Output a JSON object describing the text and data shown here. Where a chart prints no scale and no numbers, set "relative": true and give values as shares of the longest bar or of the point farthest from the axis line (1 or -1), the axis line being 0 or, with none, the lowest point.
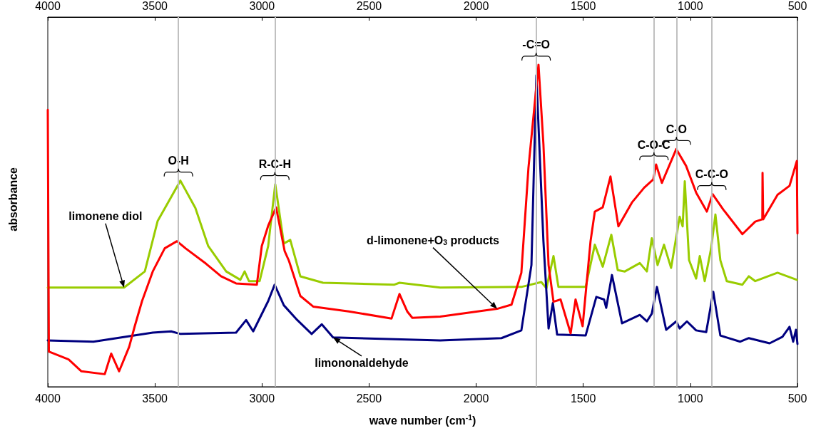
{
  "chart_data": {
    "type": "line",
    "relative": true,
    "xlabel": "wave number (cm$^{-1}$)",
    "ylabel": "absorbance",
    "xlim": [
      4000,
      500
    ],
    "xticks": [
      4000,
      3500,
      3000,
      2500,
      2000,
      1500,
      1000,
      500
    ],
    "x2lim": [
      4000,
      500
    ],
    "x2ticks": [
      4000,
      3500,
      3000,
      2500,
      2000,
      1500,
      1000,
      500
    ],
    "grid": false,
    "marker": "none",
    "line_style": "solid",
    "series": [
      {
        "name": "limonene diol",
        "color": "#99cc00",
        "x": [
          4000,
          3644,
          3547,
          3487,
          3381,
          3311,
          3251,
          3167,
          3101,
          3081,
          3061,
          3011,
          2971,
          2938,
          2898,
          2868,
          2821,
          2715,
          2382,
          2358,
          2168,
          1789,
          1696,
          1672,
          1639,
          1616,
          1489,
          1446,
          1409,
          1369,
          1339,
          1306,
          1236,
          1203,
          1180,
          1153,
          1123,
          1090,
          1050,
          1036,
          1026,
          1006,
          973,
          956,
          933,
          903,
          883,
          860,
          830,
          757,
          727,
          697,
          593,
          503
        ],
        "values": [
          0.308,
          0.308,
          0.358,
          0.515,
          0.64,
          0.555,
          0.437,
          0.358,
          0.332,
          0.358,
          0.328,
          0.328,
          0.437,
          0.629,
          0.445,
          0.456,
          0.343,
          0.323,
          0.317,
          0.323,
          0.308,
          0.31,
          0.325,
          0.306,
          0.406,
          0.31,
          0.31,
          0.441,
          0.373,
          0.472,
          0.362,
          0.358,
          0.384,
          0.358,
          0.461,
          0.378,
          0.441,
          0.369,
          0.528,
          0.498,
          0.638,
          0.393,
          0.336,
          0.406,
          0.328,
          0.43,
          0.535,
          0.393,
          0.328,
          0.317,
          0.343,
          0.328,
          0.354,
          0.332
        ]
      },
      {
        "name": "limononaldehyde",
        "color": "#000080",
        "x": [
          4000,
          3787,
          3510,
          3424,
          3381,
          3121,
          3074,
          3041,
          2971,
          2941,
          2898,
          2835,
          2768,
          2721,
          2668,
          2168,
          1882,
          1789,
          1742,
          1719,
          1686,
          1662,
          1642,
          1622,
          1489,
          1439,
          1403,
          1393,
          1366,
          1319,
          1236,
          1203,
          1180,
          1156,
          1113,
          1066,
          1050,
          1016,
          973,
          926,
          893,
          860,
          767,
          727,
          630,
          570,
          537,
          520,
          507,
          500
        ],
        "values": [
          0.144,
          0.14,
          0.168,
          0.172,
          0.164,
          0.168,
          0.207,
          0.172,
          0.266,
          0.317,
          0.253,
          0.207,
          0.164,
          0.194,
          0.153,
          0.144,
          0.151,
          0.175,
          0.378,
          0.967,
          0.452,
          0.181,
          0.26,
          0.162,
          0.159,
          0.279,
          0.271,
          0.245,
          0.347,
          0.197,
          0.223,
          0.203,
          0.227,
          0.31,
          0.177,
          0.203,
          0.181,
          0.203,
          0.175,
          0.17,
          0.295,
          0.159,
          0.14,
          0.151,
          0.135,
          0.155,
          0.186,
          0.14,
          0.177,
          0.133
        ]
      },
      {
        "name": "d-limonene+O$_{3}$ products",
        "color": "#ff0000",
        "x": [
          4000,
          3995,
          3903,
          3843,
          3734,
          3704,
          3667,
          3620,
          3594,
          3560,
          3510,
          3454,
          3397,
          3357,
          3261,
          3191,
          3121,
          3024,
          3001,
          2971,
          2934,
          2894,
          2874,
          2821,
          2761,
          2595,
          2395,
          2358,
          2322,
          2298,
          2168,
          1902,
          1835,
          1789,
          1756,
          1709,
          1686,
          1662,
          1639,
          1606,
          1559,
          1536,
          1503,
          1466,
          1446,
          1409,
          1373,
          1336,
          1273,
          1216,
          1173,
          1160,
          1133,
          1066,
          1020,
          973,
          923,
          896,
          846,
          757,
          697,
          664,
          663,
          660,
          593,
          537,
          503,
          500
        ],
        "values": [
          0.86,
          0.109,
          0.085,
          0.048,
          0.039,
          0.103,
          0.048,
          0.124,
          0.188,
          0.266,
          0.358,
          0.43,
          0.452,
          0.43,
          0.382,
          0.343,
          0.321,
          0.317,
          0.437,
          0.5,
          0.557,
          0.421,
          0.391,
          0.282,
          0.249,
          0.234,
          0.212,
          0.288,
          0.234,
          0.214,
          0.218,
          0.242,
          0.255,
          0.354,
          0.679,
          1,
          0.753,
          0.378,
          0.264,
          0.271,
          0.166,
          0.271,
          0.188,
          0.452,
          0.544,
          0.557,
          0.653,
          0.498,
          0.572,
          0.618,
          0.644,
          0.69,
          0.633,
          0.738,
          0.686,
          0.603,
          0.544,
          0.598,
          0.55,
          0.474,
          0.513,
          0.52,
          0.664,
          0.52,
          0.596,
          0.624,
          0.701,
          0.476
        ]
      }
    ],
    "ref_lines": [
      {
        "axis": "x",
        "value": 3390,
        "label": "O-H",
        "color": "#c0c0c0"
      },
      {
        "axis": "x",
        "value": 2940,
        "label": "R-C-H",
        "color": "#c0c0c0"
      },
      {
        "axis": "x",
        "value": 1720,
        "label": "-C=O",
        "color": "#c0c0c0"
      },
      {
        "axis": "x",
        "value": 1170,
        "label": "C-O-C",
        "color": "#c0c0c0"
      },
      {
        "axis": "x",
        "value": 1065,
        "label": "C-O",
        "color": "#c0c0c0"
      },
      {
        "axis": "x",
        "value": 900,
        "label": "C-C-O",
        "color": "#c0c0c0"
      }
    ]
  }
}
